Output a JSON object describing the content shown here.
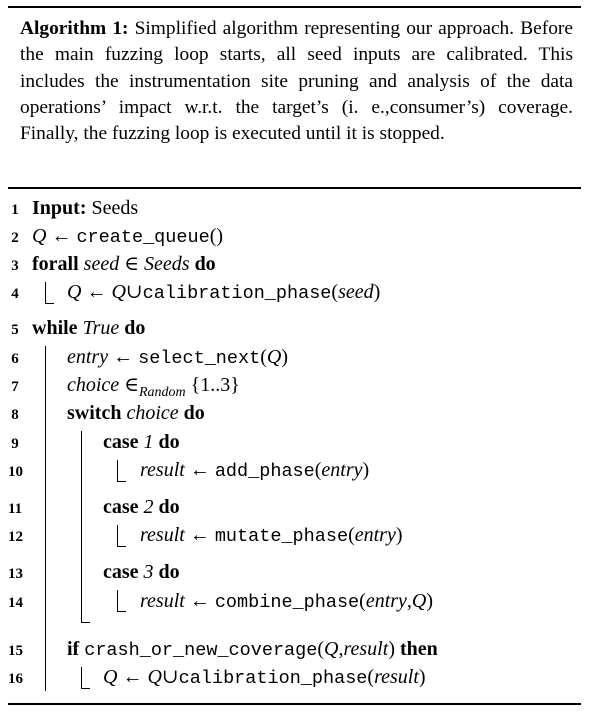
{
  "caption": {
    "label": "Algorithm 1:",
    "text": "Simplified algorithm representing our approach. Before the main fuzzing loop starts, all seed inputs are calibrated. This includes the instrumentation site pruning and analysis of the data operations’ impact w.r.t. the target’s (i. e.,consumer’s) coverage. Finally, the fuzzing loop is executed until it is stopped."
  },
  "lines": [
    {
      "n": "1"
    },
    {
      "n": "2"
    },
    {
      "n": "3"
    },
    {
      "n": "4"
    },
    {
      "n": "5"
    },
    {
      "n": "6"
    },
    {
      "n": "7"
    },
    {
      "n": "8"
    },
    {
      "n": "9"
    },
    {
      "n": "10"
    },
    {
      "n": "11"
    },
    {
      "n": "12"
    },
    {
      "n": "13"
    },
    {
      "n": "14"
    },
    {
      "n": "15"
    },
    {
      "n": "16"
    }
  ],
  "tokens": {
    "input_kw": "Input:",
    "seeds": "Seeds",
    "q": "Q",
    "arrow": "←",
    "create_queue": "create_queue",
    "paren_open": "(",
    "paren_close": ")",
    "forall_kw": "forall",
    "seed": "seed",
    "in": "∈",
    "Seeds": "Seeds",
    "do_kw": "do",
    "union": "∪",
    "calibration_phase": "calibration_phase",
    "while_kw": "while",
    "true": "True",
    "entry": "entry",
    "select_next": "select_next",
    "choice": "choice",
    "random": "Random",
    "range": "{1..3}",
    "switch_kw": "switch",
    "case_kw": "case",
    "case1": "1",
    "case2": "2",
    "case3": "3",
    "result": "result",
    "add_phase": "add_phase",
    "mutate_phase": "mutate_phase",
    "combine_phase": "combine_phase",
    "comma": ",",
    "if_kw": "if",
    "crash_or_new_coverage": "crash_or_new_coverage",
    "then_kw": "then"
  }
}
